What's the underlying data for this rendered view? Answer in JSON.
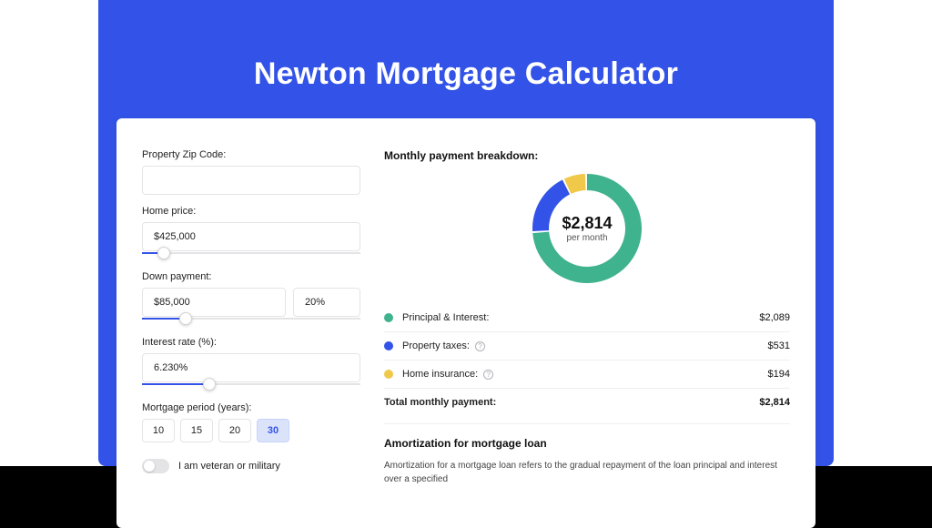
{
  "page": {
    "background": "#ffffff",
    "wrap_color": "#3353e8",
    "title": "Newton Mortgage Calculator",
    "title_color": "#ffffff",
    "title_fontsize": 34
  },
  "form": {
    "zip": {
      "label": "Property Zip Code:",
      "value": ""
    },
    "home_price": {
      "label": "Home price:",
      "value": "$425,000",
      "slider_percent": 10
    },
    "down_payment": {
      "label": "Down payment:",
      "value": "$85,000",
      "pct": "20%",
      "slider_percent": 20
    },
    "interest": {
      "label": "Interest rate (%):",
      "value": "6.230%",
      "slider_percent": 31
    },
    "period": {
      "label": "Mortgage period (years):",
      "options": [
        "10",
        "15",
        "20",
        "30"
      ],
      "active_index": 3
    },
    "veteran": {
      "label": "I am veteran or military",
      "checked": false
    }
  },
  "breakdown": {
    "title": "Monthly payment breakdown:",
    "donut": {
      "center_value": "$2,814",
      "center_sub": "per month",
      "slices": [
        {
          "label": "Principal & Interest",
          "value": 2089,
          "color": "#3fb28e",
          "percent": 74.2
        },
        {
          "label": "Property taxes",
          "value": 531,
          "color": "#3353e8",
          "percent": 18.9
        },
        {
          "label": "Home insurance",
          "value": 194,
          "color": "#f0c94b",
          "percent": 6.9
        }
      ],
      "ring_width": 18,
      "outer_radius": 60,
      "background": "#ffffff"
    },
    "rows": [
      {
        "dot": "#3fb28e",
        "label": "Principal & Interest:",
        "value": "$2,089",
        "info": false
      },
      {
        "dot": "#3353e8",
        "label": "Property taxes:",
        "value": "$531",
        "info": true
      },
      {
        "dot": "#f0c94b",
        "label": "Home insurance:",
        "value": "$194",
        "info": true
      }
    ],
    "total": {
      "label": "Total monthly payment:",
      "value": "$2,814"
    }
  },
  "amortization": {
    "title": "Amortization for mortgage loan",
    "body": "Amortization for a mortgage loan refers to the gradual repayment of the loan principal and interest over a specified"
  },
  "style": {
    "input_border": "#e4e4e7",
    "text_color": "#222222",
    "muted": "#555555",
    "divider": "#efeff1"
  }
}
